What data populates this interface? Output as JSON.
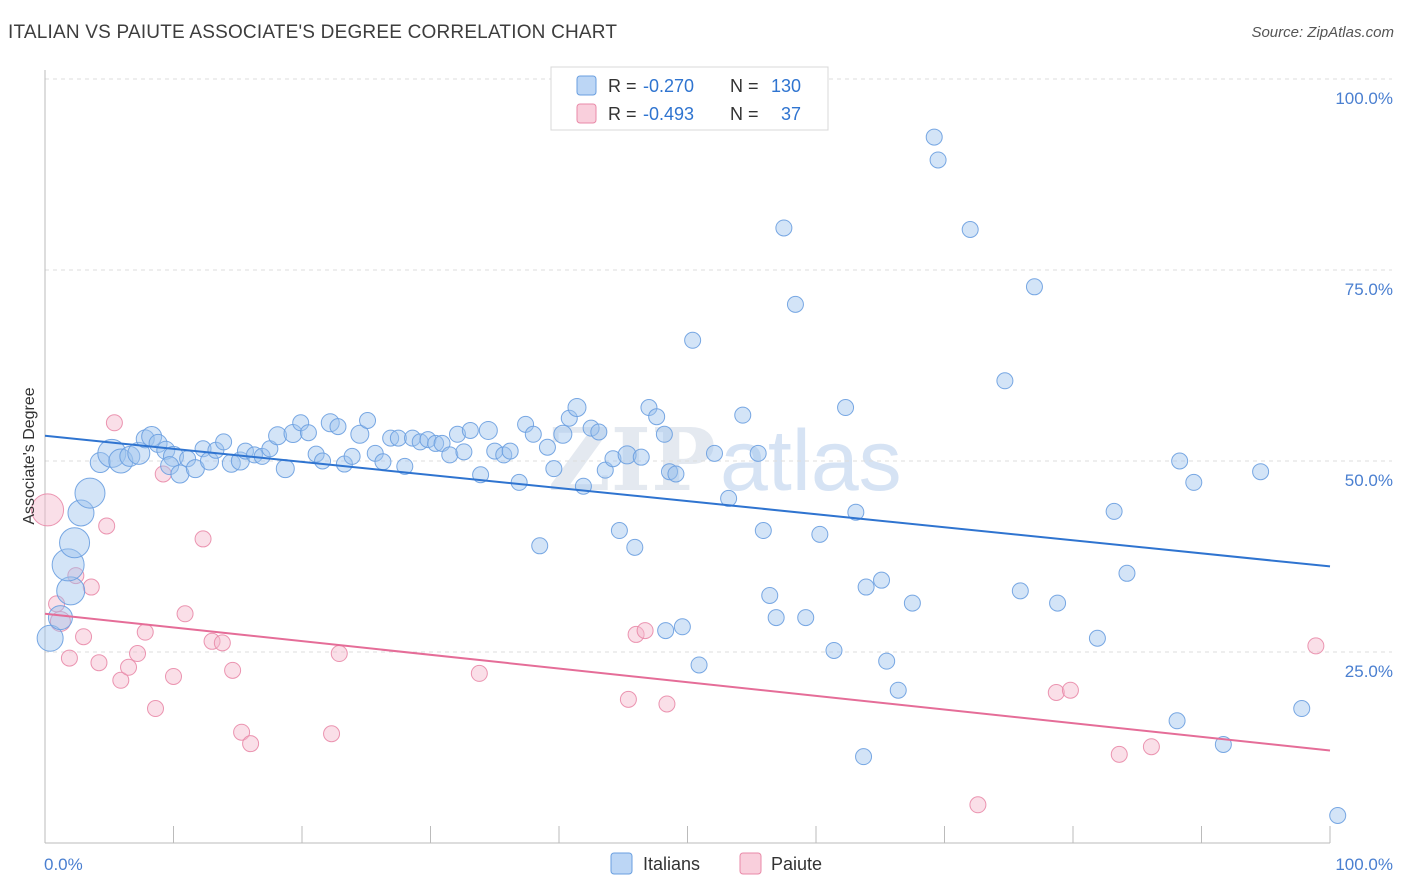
{
  "title": "ITALIAN VS PAIUTE ASSOCIATE'S DEGREE CORRELATION CHART",
  "source": "Source: ZipAtlas.com",
  "watermark": {
    "zip": "ZIP",
    "atlas": "atlas"
  },
  "legend_top": {
    "rows": [
      {
        "r_label": "R = ",
        "r_value": "-0.270",
        "n_label": "N = ",
        "n_value": "130"
      },
      {
        "r_label": "R = ",
        "r_value": "-0.493",
        "n_label": "N = ",
        "n_value": "37"
      }
    ]
  },
  "colors": {
    "blue_fill": "#9ec3ee",
    "blue_stroke": "#6a9fe0",
    "blue_line": "#2f74d0",
    "pink_fill": "#f5b8cb",
    "pink_stroke": "#e98aa8",
    "pink_line": "#e56d98",
    "axis_text": "#4a7fd0",
    "grid": "#dddddd"
  },
  "chart_data": {
    "type": "scatter",
    "title": "ITALIAN VS PAIUTE ASSOCIATE'S DEGREE CORRELATION CHART",
    "xlabel": "",
    "ylabel": "Associate's Degree",
    "xlim": [
      0,
      100
    ],
    "ylim": [
      0,
      100
    ],
    "x_tick_labels": [
      "0.0%",
      "100.0%"
    ],
    "y_tick_labels": [
      "25.0%",
      "50.0%",
      "75.0%",
      "100.0%"
    ],
    "y_ticks": [
      25,
      50,
      75,
      100
    ],
    "legend": [
      "Italians",
      "Paiute"
    ],
    "series": [
      {
        "name": "Italians",
        "r": -0.27,
        "n": 130,
        "trend": {
          "x0": 0,
          "y0": 53.3,
          "x1": 100,
          "y1": 36.2
        },
        "points": [
          [
            0.4,
            26.8,
            13
          ],
          [
            1.2,
            29.5,
            12
          ],
          [
            2.0,
            33.0,
            14
          ],
          [
            1.8,
            36.4,
            16
          ],
          [
            2.3,
            39.3,
            15
          ],
          [
            2.8,
            43.2,
            13
          ],
          [
            3.5,
            45.8,
            15
          ],
          [
            4.3,
            49.8,
            10
          ],
          [
            5.2,
            51.0,
            14
          ],
          [
            5.9,
            50.0,
            12
          ],
          [
            6.6,
            50.6,
            10
          ],
          [
            7.3,
            51.0,
            11
          ],
          [
            7.8,
            52.9,
            9
          ],
          [
            8.3,
            53.2,
            10
          ],
          [
            8.8,
            52.3,
            9
          ],
          [
            9.4,
            51.4,
            9
          ],
          [
            10.0,
            50.6,
            10
          ],
          [
            9.7,
            49.4,
            9
          ],
          [
            10.5,
            48.3,
            9
          ],
          [
            11.1,
            50.3,
            8
          ],
          [
            11.7,
            49.0,
            9
          ],
          [
            12.3,
            51.6,
            8
          ],
          [
            12.8,
            50.0,
            9
          ],
          [
            13.3,
            51.4,
            8
          ],
          [
            13.9,
            52.5,
            8
          ],
          [
            14.5,
            49.7,
            9
          ],
          [
            15.2,
            50.0,
            9
          ],
          [
            15.6,
            51.3,
            8
          ],
          [
            16.3,
            50.8,
            8
          ],
          [
            16.9,
            50.6,
            8
          ],
          [
            17.5,
            51.6,
            8
          ],
          [
            18.1,
            53.3,
            9
          ],
          [
            18.7,
            49.0,
            9
          ],
          [
            19.3,
            53.6,
            9
          ],
          [
            19.9,
            55.0,
            8
          ],
          [
            20.5,
            53.7,
            8
          ],
          [
            21.1,
            50.9,
            8
          ],
          [
            21.6,
            50.0,
            8
          ],
          [
            22.2,
            55.0,
            9
          ],
          [
            22.8,
            54.5,
            8
          ],
          [
            23.3,
            49.6,
            8
          ],
          [
            23.9,
            50.6,
            8
          ],
          [
            24.5,
            53.5,
            9
          ],
          [
            25.1,
            55.3,
            8
          ],
          [
            25.7,
            51.0,
            8
          ],
          [
            26.3,
            49.9,
            8
          ],
          [
            26.9,
            53.0,
            8
          ],
          [
            27.5,
            53.0,
            8
          ],
          [
            28.0,
            49.3,
            8
          ],
          [
            28.6,
            53.0,
            8
          ],
          [
            29.2,
            52.5,
            8
          ],
          [
            29.8,
            52.8,
            8
          ],
          [
            30.4,
            52.3,
            8
          ],
          [
            30.9,
            52.3,
            8
          ],
          [
            31.5,
            50.8,
            8
          ],
          [
            32.1,
            53.5,
            8
          ],
          [
            32.6,
            51.2,
            8
          ],
          [
            33.1,
            54.0,
            8
          ],
          [
            33.9,
            48.2,
            8
          ],
          [
            34.5,
            54.0,
            9
          ],
          [
            35.0,
            51.3,
            8
          ],
          [
            35.7,
            50.8,
            8
          ],
          [
            36.2,
            51.3,
            8
          ],
          [
            36.9,
            47.2,
            8
          ],
          [
            37.4,
            54.8,
            8
          ],
          [
            38.0,
            53.5,
            8
          ],
          [
            38.5,
            38.9,
            8
          ],
          [
            39.1,
            51.8,
            8
          ],
          [
            39.6,
            49.0,
            8
          ],
          [
            40.3,
            53.5,
            9
          ],
          [
            40.8,
            55.6,
            8
          ],
          [
            41.4,
            57.0,
            9
          ],
          [
            41.9,
            46.7,
            8
          ],
          [
            42.5,
            54.3,
            8
          ],
          [
            43.1,
            53.8,
            8
          ],
          [
            43.6,
            48.8,
            8
          ],
          [
            44.2,
            50.3,
            8
          ],
          [
            44.7,
            40.9,
            8
          ],
          [
            45.3,
            50.8,
            9
          ],
          [
            45.9,
            38.7,
            8
          ],
          [
            46.4,
            50.5,
            8
          ],
          [
            47.0,
            57.0,
            8
          ],
          [
            47.6,
            55.8,
            8
          ],
          [
            48.2,
            53.5,
            8
          ],
          [
            48.6,
            48.6,
            8
          ],
          [
            49.1,
            48.3,
            8
          ],
          [
            48.3,
            27.8,
            8
          ],
          [
            49.6,
            28.3,
            8
          ],
          [
            50.4,
            65.8,
            8
          ],
          [
            50.9,
            23.3,
            8
          ],
          [
            52.1,
            51.0,
            8
          ],
          [
            53.2,
            45.1,
            8
          ],
          [
            54.3,
            56.0,
            8
          ],
          [
            55.5,
            51.0,
            8
          ],
          [
            55.9,
            40.9,
            8
          ],
          [
            56.4,
            32.4,
            8
          ],
          [
            56.9,
            29.5,
            8
          ],
          [
            57.5,
            80.5,
            8
          ],
          [
            58.4,
            70.5,
            8
          ],
          [
            59.2,
            29.5,
            8
          ],
          [
            60.3,
            40.4,
            8
          ],
          [
            61.4,
            25.2,
            8
          ],
          [
            62.3,
            57.0,
            8
          ],
          [
            63.1,
            43.3,
            8
          ],
          [
            63.9,
            33.5,
            8
          ],
          [
            65.1,
            34.4,
            8
          ],
          [
            65.5,
            23.8,
            8
          ],
          [
            66.4,
            20.0,
            8
          ],
          [
            63.7,
            11.3,
            8
          ],
          [
            67.5,
            31.4,
            8
          ],
          [
            69.2,
            92.4,
            8
          ],
          [
            69.5,
            89.4,
            8
          ],
          [
            72.0,
            80.3,
            8
          ],
          [
            74.7,
            60.5,
            8
          ],
          [
            75.9,
            33.0,
            8
          ],
          [
            77.0,
            72.8,
            8
          ],
          [
            78.8,
            31.4,
            8
          ],
          [
            81.9,
            26.8,
            8
          ],
          [
            83.2,
            43.4,
            8
          ],
          [
            84.2,
            35.3,
            8
          ],
          [
            88.1,
            16.0,
            8
          ],
          [
            88.3,
            50.0,
            8
          ],
          [
            89.4,
            47.2,
            8
          ],
          [
            91.7,
            12.9,
            8
          ],
          [
            94.6,
            48.6,
            8
          ],
          [
            97.8,
            17.6,
            8
          ],
          [
            100.6,
            3.6,
            8
          ]
        ]
      },
      {
        "name": "Paiute",
        "r": -0.493,
        "n": 37,
        "trend": {
          "x0": 0,
          "y0": 30.0,
          "x1": 100,
          "y1": 12.1
        },
        "points": [
          [
            0.2,
            43.6,
            16
          ],
          [
            0.9,
            31.3,
            8
          ],
          [
            1.2,
            29.0,
            10
          ],
          [
            1.9,
            24.2,
            8
          ],
          [
            2.4,
            35.0,
            8
          ],
          [
            3.0,
            27.0,
            8
          ],
          [
            3.6,
            33.5,
            8
          ],
          [
            4.2,
            23.6,
            8
          ],
          [
            4.8,
            41.5,
            8
          ],
          [
            5.4,
            55.0,
            8
          ],
          [
            5.9,
            21.3,
            8
          ],
          [
            6.5,
            23.0,
            8
          ],
          [
            7.2,
            24.8,
            8
          ],
          [
            7.8,
            27.6,
            8
          ],
          [
            8.6,
            17.6,
            8
          ],
          [
            9.2,
            48.3,
            8
          ],
          [
            10.0,
            21.8,
            8
          ],
          [
            10.9,
            30.0,
            8
          ],
          [
            12.3,
            39.8,
            8
          ],
          [
            13.0,
            26.4,
            8
          ],
          [
            13.8,
            26.2,
            8
          ],
          [
            14.6,
            22.6,
            8
          ],
          [
            15.3,
            14.5,
            8
          ],
          [
            16.0,
            13.0,
            8
          ],
          [
            22.3,
            14.3,
            8
          ],
          [
            22.9,
            24.8,
            8
          ],
          [
            33.8,
            22.2,
            8
          ],
          [
            45.4,
            18.8,
            8
          ],
          [
            46.0,
            27.3,
            8
          ],
          [
            46.7,
            27.8,
            8
          ],
          [
            48.4,
            18.2,
            8
          ],
          [
            72.6,
            5.0,
            8
          ],
          [
            78.7,
            19.7,
            8
          ],
          [
            79.8,
            20.0,
            8
          ],
          [
            83.6,
            11.6,
            8
          ],
          [
            86.1,
            12.6,
            8
          ],
          [
            98.9,
            25.8,
            8
          ]
        ]
      }
    ]
  }
}
